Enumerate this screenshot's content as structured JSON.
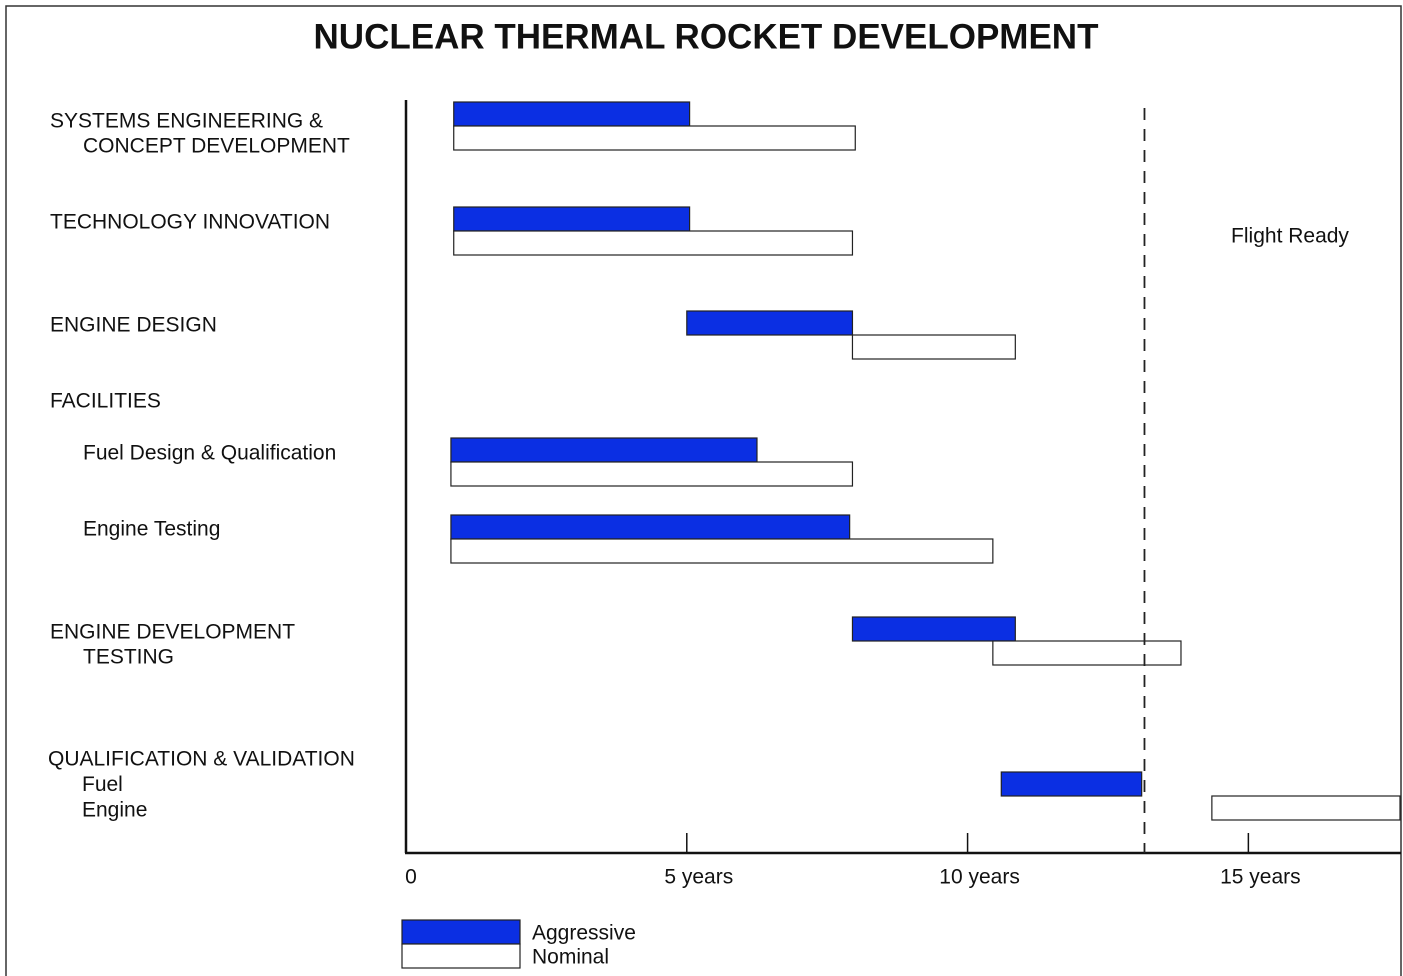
{
  "chart_data": {
    "type": "gantt",
    "title": "NUCLEAR THERMAL ROCKET DEVELOPMENT",
    "categories": [
      [
        "SYSTEMS ENGINEERING &",
        "CONCEPT DEVELOPMENT"
      ],
      [
        "TECHNOLOGY INNOVATION"
      ],
      [
        "ENGINE DESIGN"
      ],
      [
        "FACILITIES"
      ],
      [
        "Fuel Design & Qualification"
      ],
      [
        "Engine Testing"
      ],
      [
        "ENGINE DEVELOPMENT",
        "TESTING"
      ],
      [
        "QUALIFICATION & VALIDATION",
        "Fuel",
        "Engine"
      ]
    ],
    "series": [
      {
        "name": "Aggressive",
        "color": "#0b2fe3",
        "values": [
          [
            0.85,
            5.05
          ],
          [
            0.85,
            5.05
          ],
          [
            5.0,
            7.95
          ],
          null,
          [
            0.8,
            6.25
          ],
          [
            0.8,
            7.9
          ],
          [
            7.95,
            10.85
          ],
          [
            10.6,
            13.1
          ]
        ]
      },
      {
        "name": "Nominal",
        "color": "#ffffff",
        "values": [
          [
            0.85,
            8.0
          ],
          [
            0.85,
            7.95
          ],
          [
            7.95,
            10.85
          ],
          null,
          [
            0.8,
            7.95
          ],
          [
            0.8,
            10.45
          ],
          [
            10.45,
            13.8
          ],
          [
            14.35,
            17.7
          ]
        ]
      }
    ],
    "xlim": [
      0,
      17.7
    ],
    "xticks": [
      0,
      {
        "value": 5,
        "label": "5 years"
      },
      {
        "value": 10,
        "label": "10 years"
      },
      {
        "value": 15,
        "label": "15 years"
      }
    ],
    "annotation": {
      "value": 13.15,
      "label": "Flight Ready"
    }
  }
}
